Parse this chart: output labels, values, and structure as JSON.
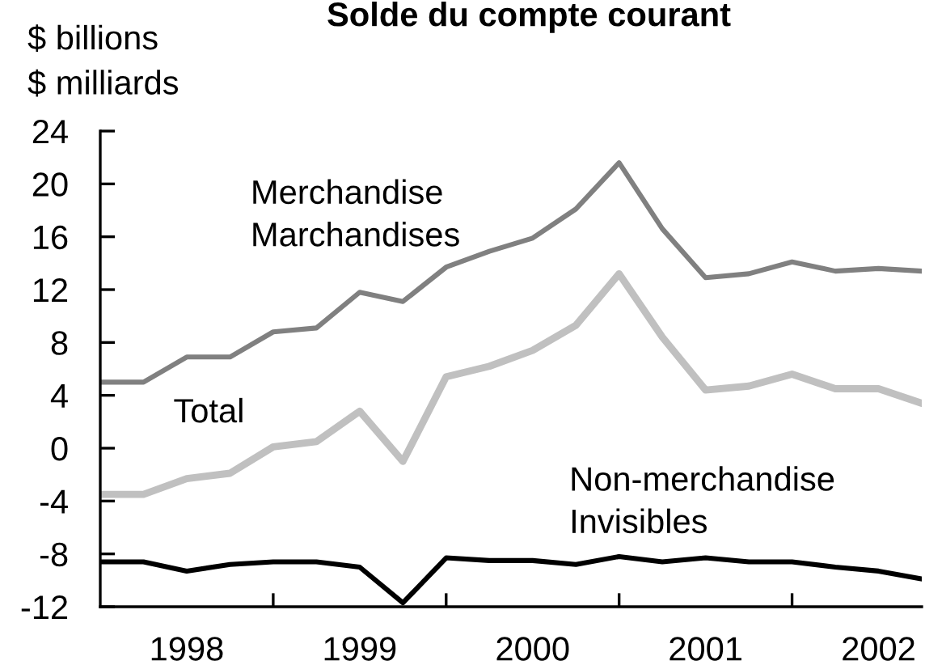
{
  "chart_data": {
    "type": "line",
    "title": "Solde du compte courant",
    "ylabel": "$ billions\n$ milliards",
    "x": [
      1998,
      1998.25,
      1998.5,
      1998.75,
      1999,
      1999.25,
      1999.5,
      1999.75,
      2000,
      2000.25,
      2000.5,
      2000.75,
      2001,
      2001.25,
      2001.5,
      2001.75,
      2002,
      2002.25,
      2002.5,
      2002.75
    ],
    "xlim": [
      1998,
      2002.75
    ],
    "xticks": [
      {
        "value": 1998.5,
        "label": "1998"
      },
      {
        "value": 1999,
        "label": null
      },
      {
        "value": 1999.5,
        "label": "1999"
      },
      {
        "value": 2000,
        "label": null
      },
      {
        "value": 2000.5,
        "label": "2000"
      },
      {
        "value": 2001,
        "label": null
      },
      {
        "value": 2001.5,
        "label": "2001"
      },
      {
        "value": 2002,
        "label": null
      },
      {
        "value": 2002.5,
        "label": "2002"
      }
    ],
    "ylim": [
      -12,
      24
    ],
    "yticks": [
      -12,
      -8,
      -4,
      0,
      4,
      8,
      12,
      16,
      20,
      24
    ],
    "series": [
      {
        "name": "Merchandise\nMarchandises",
        "color": "#808080",
        "values": [
          5.0,
          5.0,
          6.9,
          6.9,
          8.8,
          9.1,
          11.8,
          11.1,
          13.7,
          14.9,
          15.9,
          18.1,
          21.6,
          16.6,
          12.9,
          13.2,
          14.1,
          13.4,
          13.6,
          13.4
        ]
      },
      {
        "name": "Total",
        "color": "#c0c0c0",
        "values": [
          -3.5,
          -3.5,
          -2.3,
          -1.9,
          0.1,
          0.5,
          2.8,
          -1.0,
          5.4,
          6.2,
          7.4,
          9.3,
          13.2,
          8.4,
          4.4,
          4.7,
          5.6,
          4.5,
          4.5,
          3.4
        ]
      },
      {
        "name": "Non-merchandise\nInvisibles",
        "color": "#000000",
        "values": [
          -8.6,
          -8.6,
          -9.3,
          -8.8,
          -8.6,
          -8.6,
          -9.0,
          -11.7,
          -8.3,
          -8.5,
          -8.5,
          -8.8,
          -8.2,
          -8.6,
          -8.3,
          -8.6,
          -8.6,
          -9.0,
          -9.3,
          -9.9
        ]
      }
    ]
  }
}
